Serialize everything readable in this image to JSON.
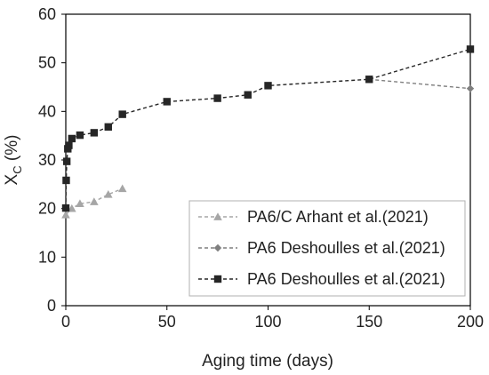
{
  "chart_data": {
    "type": "line",
    "xlabel": "Aging time (days)",
    "ylabel_main": "X",
    "ylabel_sub": "C",
    "ylabel_unit": " (%)",
    "xlim": [
      0,
      200
    ],
    "ylim": [
      0,
      60
    ],
    "x_ticks": [
      "0",
      "50",
      "100",
      "150",
      "200"
    ],
    "y_ticks": [
      "0",
      "10",
      "20",
      "30",
      "40",
      "50",
      "60"
    ],
    "grid": false,
    "legend_position": "bottom-right",
    "series": [
      {
        "name": "PA6/C Arhant et al.(2021)",
        "marker": "triangle",
        "color": "#a6a6a6",
        "x": [
          0,
          3,
          7,
          14,
          21,
          28
        ],
        "y": [
          18.7,
          20.0,
          21.0,
          21.4,
          22.9,
          24.1
        ]
      },
      {
        "name": "PA6 Deshoulles et al.(2021)",
        "marker": "diamond",
        "color": "#7f7f7f",
        "x": [
          150,
          200
        ],
        "y": [
          46.6,
          44.7
        ]
      },
      {
        "name": "PA6 Deshoulles et al.(2021)",
        "marker": "square",
        "color": "#262626",
        "x": [
          0,
          0.2,
          0.5,
          1,
          1.5,
          3,
          7,
          14,
          21,
          28,
          50,
          75,
          90,
          100,
          150,
          200
        ],
        "y": [
          20.1,
          25.8,
          29.7,
          32.3,
          33.0,
          34.4,
          35.1,
          35.6,
          36.8,
          39.4,
          42.0,
          42.7,
          43.4,
          45.3,
          46.6,
          52.8
        ]
      }
    ]
  }
}
